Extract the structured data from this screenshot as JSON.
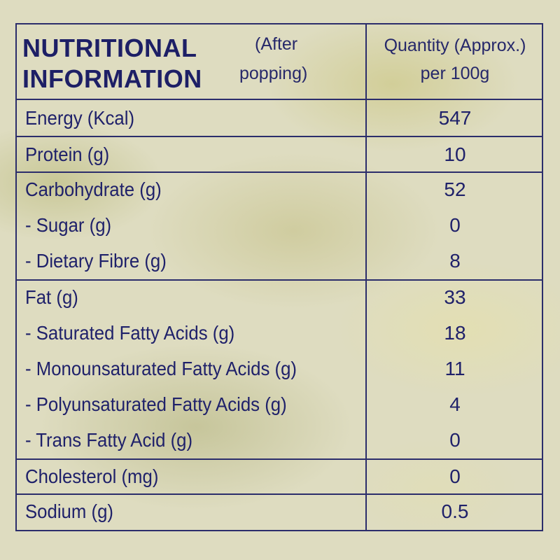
{
  "header": {
    "title_line1": "NUTRITIONAL",
    "title_line2": "INFORMATION",
    "note_line1": "(After",
    "note_line2": "popping)",
    "qty_line1": "Quantity (Approx.)",
    "qty_line2": "per 100g"
  },
  "rows": [
    {
      "name": "Energy (Kcal)",
      "value": "547"
    },
    {
      "name": "Protein (g)",
      "value": "10"
    },
    {
      "name": "Carbohydrate (g)",
      "value": "52"
    },
    {
      "name": "- Sugar (g)",
      "value": "0"
    },
    {
      "name": "- Dietary Fibre (g)",
      "value": "8"
    },
    {
      "name": "Fat (g)",
      "value": "33"
    },
    {
      "name": "- Saturated Fatty Acids (g)",
      "value": "18"
    },
    {
      "name": "- Monounsaturated Fatty Acids (g)",
      "value": "11"
    },
    {
      "name": "- Polyunsaturated Fatty Acids (g)",
      "value": "4"
    },
    {
      "name": "- Trans Fatty Acid (g)",
      "value": "0"
    },
    {
      "name": "Cholesterol (mg)",
      "value": "0"
    },
    {
      "name": "Sodium (g)",
      "value": "0.5"
    }
  ],
  "colors": {
    "ink": "#1d1f66",
    "rule": "#2b2d6b",
    "background": "#dedcc0"
  }
}
